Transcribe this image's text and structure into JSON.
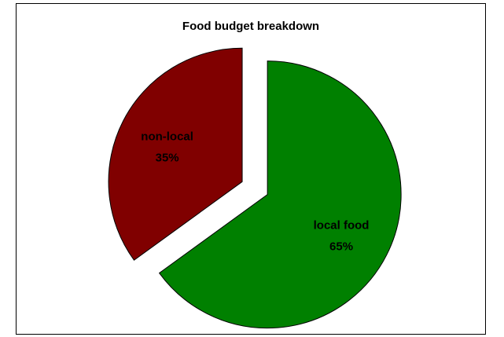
{
  "chart_data": {
    "type": "pie",
    "title": "Food budget breakdown",
    "slices": [
      {
        "label": "local food",
        "value": 65,
        "percent_text": "65%",
        "color": "#008000"
      },
      {
        "label": "non-local",
        "value": 35,
        "percent_text": "35%",
        "color": "#800000"
      }
    ],
    "legend": "none",
    "exploded": true
  }
}
